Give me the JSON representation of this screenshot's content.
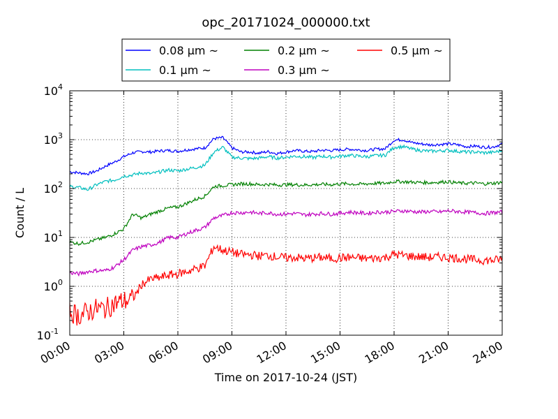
{
  "chart_data": {
    "type": "line",
    "title": "opc_20171024_000000.txt",
    "xlabel": "Time on 2017-10-24 (JST)",
    "ylabel": "Count / L",
    "yscale": "log",
    "xlim_hours": [
      0,
      24
    ],
    "ylim": [
      0.1,
      10000
    ],
    "grid": true,
    "legend_position": "top-center (outside, above plot)",
    "x_tick_labels": [
      "00:00",
      "03:00",
      "06:00",
      "09:00",
      "12:00",
      "15:00",
      "18:00",
      "21:00",
      "24:00"
    ],
    "x_tick_hours": [
      0,
      3,
      6,
      9,
      12,
      15,
      18,
      21,
      24
    ],
    "y_ticks": [
      {
        "value": 0.1,
        "base": "10",
        "exp": "-1"
      },
      {
        "value": 1,
        "base": "10",
        "exp": "0"
      },
      {
        "value": 10,
        "base": "10",
        "exp": "1"
      },
      {
        "value": 100,
        "base": "10",
        "exp": "2"
      },
      {
        "value": 1000,
        "base": "10",
        "exp": "3"
      },
      {
        "value": 10000,
        "base": "10",
        "exp": "4"
      }
    ],
    "x_hours": [
      0,
      0.5,
      1,
      1.5,
      2,
      2.5,
      3,
      3.5,
      4,
      4.5,
      5,
      5.5,
      6,
      6.5,
      7,
      7.5,
      8,
      8.5,
      9,
      9.5,
      10,
      10.5,
      11,
      11.5,
      12,
      12.5,
      13,
      13.5,
      14,
      14.5,
      15,
      15.5,
      16,
      16.5,
      17,
      17.5,
      18,
      18.5,
      19,
      19.5,
      20,
      20.5,
      21,
      21.5,
      22,
      22.5,
      23,
      23.5,
      24
    ],
    "series": [
      {
        "name": "0.08 μm ~",
        "color": "#0000ff",
        "values": [
          220,
          210,
          200,
          230,
          290,
          350,
          450,
          540,
          570,
          560,
          590,
          600,
          580,
          620,
          650,
          680,
          1050,
          1100,
          680,
          560,
          560,
          530,
          570,
          520,
          560,
          600,
          580,
          570,
          610,
          600,
          620,
          640,
          620,
          600,
          640,
          650,
          980,
          1000,
          870,
          820,
          780,
          800,
          820,
          790,
          720,
          740,
          700,
          710,
          820
        ]
      },
      {
        "name": "0.1 μm ~",
        "color": "#00bfbf",
        "values": [
          110,
          105,
          95,
          120,
          140,
          150,
          180,
          190,
          210,
          200,
          220,
          240,
          230,
          250,
          270,
          300,
          560,
          700,
          440,
          420,
          410,
          420,
          450,
          420,
          440,
          460,
          450,
          430,
          460,
          440,
          460,
          480,
          460,
          450,
          470,
          480,
          700,
          720,
          640,
          600,
          580,
          590,
          610,
          580,
          560,
          560,
          540,
          550,
          600
        ]
      },
      {
        "name": "0.2 μm ~",
        "color": "#008000",
        "values": [
          8,
          7.5,
          8,
          9,
          10,
          12,
          15,
          30,
          25,
          30,
          35,
          40,
          42,
          50,
          60,
          70,
          110,
          115,
          120,
          125,
          125,
          120,
          122,
          118,
          120,
          120,
          118,
          120,
          122,
          120,
          125,
          125,
          122,
          125,
          128,
          128,
          140,
          138,
          135,
          133,
          132,
          135,
          138,
          130,
          128,
          130,
          125,
          128,
          135
        ]
      },
      {
        "name": "0.3 μm ~",
        "color": "#bf00bf",
        "values": [
          1.9,
          1.8,
          2.0,
          2.1,
          2.1,
          2.5,
          3.5,
          5.5,
          6.5,
          7,
          8,
          10,
          10,
          12,
          14,
          16,
          25,
          28,
          32,
          32,
          33,
          31,
          32,
          30,
          30,
          31,
          29,
          30,
          31,
          30,
          31,
          33,
          32,
          31,
          33,
          33,
          34,
          35,
          34,
          33,
          34,
          33,
          35,
          34,
          33,
          32,
          31,
          32,
          33
        ]
      },
      {
        "name": "0.5 μm ~",
        "color": "#ff0000",
        "values": [
          0.3,
          0.25,
          0.3,
          0.35,
          0.35,
          0.45,
          0.5,
          0.55,
          1.1,
          1.4,
          1.5,
          1.7,
          1.8,
          2.0,
          2.3,
          2.6,
          6.5,
          5.5,
          5.0,
          4.5,
          4.4,
          4.2,
          4.3,
          4.0,
          3.8,
          3.9,
          3.7,
          3.8,
          3.9,
          3.7,
          3.8,
          3.9,
          3.8,
          3.7,
          3.8,
          3.9,
          4.5,
          4.3,
          4.1,
          4.0,
          3.9,
          4.0,
          3.9,
          3.8,
          3.6,
          3.5,
          3.4,
          3.4,
          3.6
        ]
      }
    ]
  }
}
